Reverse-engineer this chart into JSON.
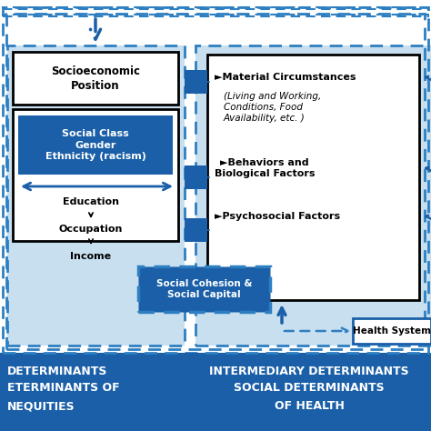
{
  "bg_color": "#ffffff",
  "light_blue_bg": "#c8dff0",
  "dark_blue": "#1a5fa8",
  "dashed_color": "#2e7fc1",
  "black": "#000000",
  "white": "#ffffff",
  "socioeconomic_text": "Socioeconomic\nPosition",
  "social_class_text": "Social Class\nGender\nEthnicity (racism)",
  "education_text": "Education",
  "occupation_text": "Occupation",
  "income_text": "Income",
  "social_cohesion_text": "Social Cohesion &\nSocial Capital",
  "material_circ_bold": "Material Circumstances",
  "material_circ_italic": "(Living and Working,\nConditions, Food\nAvailability, etc. )",
  "behaviors_text": "Behaviors and\nBiological Factors",
  "psychosocial_text": "Psychosocial Factors",
  "health_system_text": "Health System",
  "left_bottom_lines": [
    "DETERMINANTS",
    "ETERMINANTS OF",
    "NEQUITIES"
  ],
  "right_bottom_lines": [
    "INTERMEDIARY DETERMINANTS",
    "SOCIAL DETERMINANTS",
    "OF HEALTH"
  ]
}
